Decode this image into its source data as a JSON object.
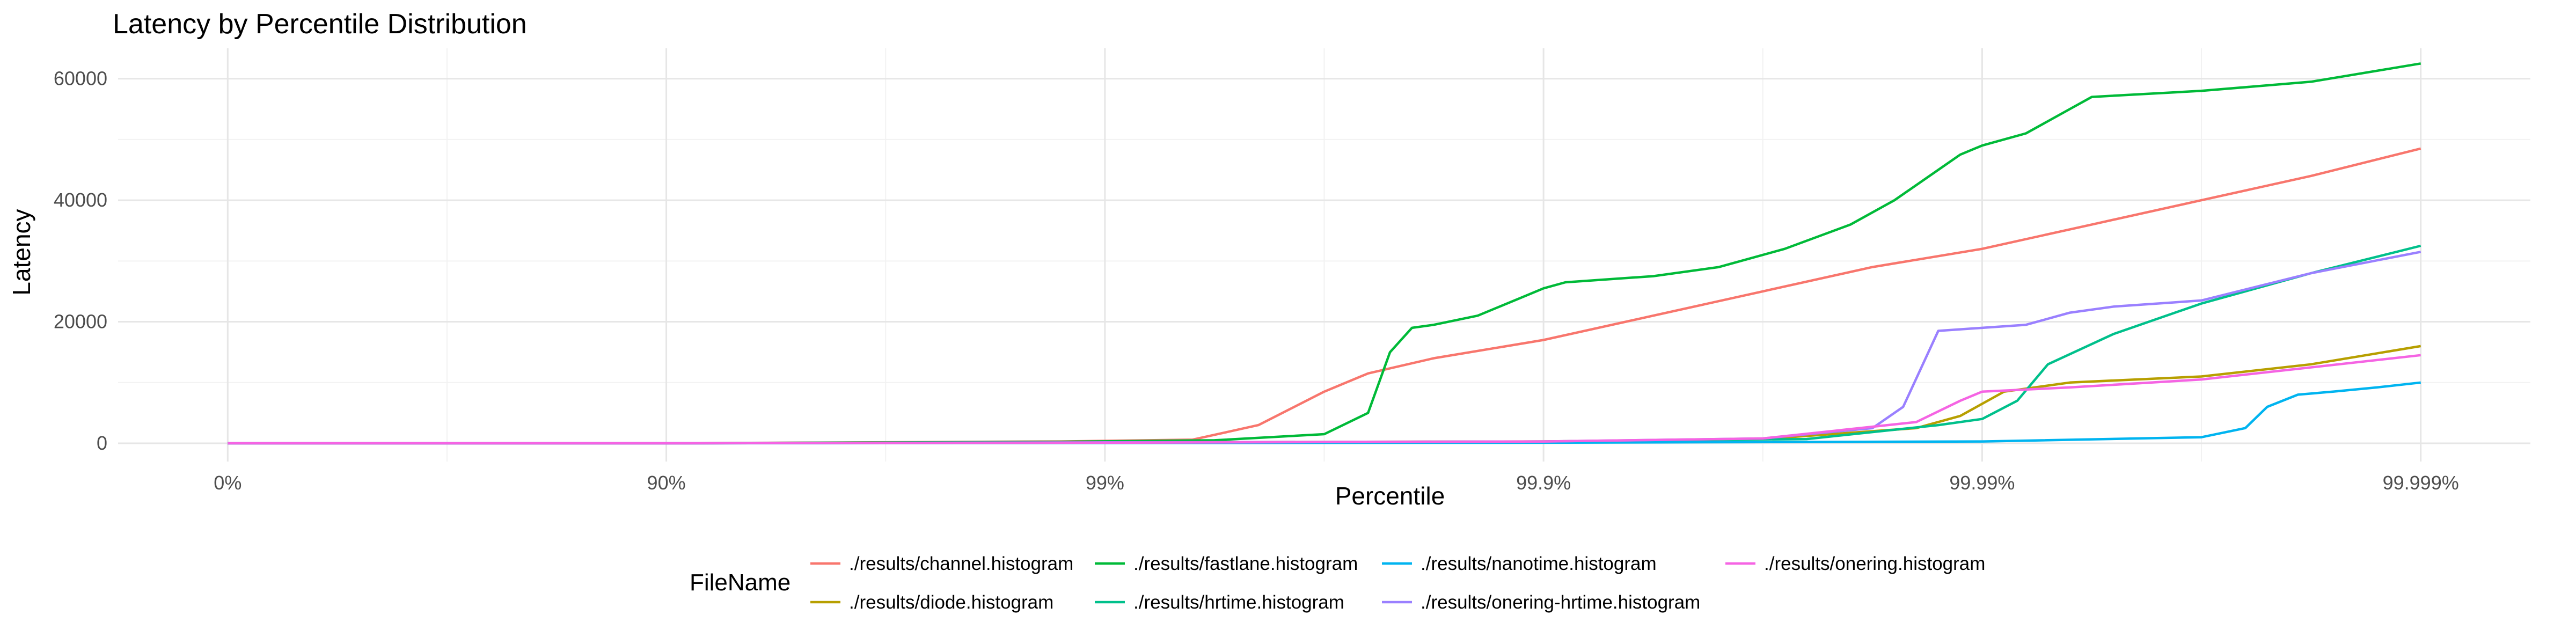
{
  "chart_data": {
    "type": "line",
    "title": "Latency by Percentile Distribution",
    "xlabel": "Percentile",
    "ylabel": "Latency",
    "x_scale": "log10(1/(1-percentile))",
    "x_ticks": [
      "0%",
      "90%",
      "99%",
      "99.9%",
      "99.99%",
      "99.999%"
    ],
    "x_tick_values": [
      0,
      1,
      2,
      3,
      4,
      5
    ],
    "xlim": [
      -0.25,
      5.25
    ],
    "y_ticks": [
      "0",
      "20000",
      "40000",
      "60000"
    ],
    "y_tick_values": [
      0,
      20000,
      40000,
      60000
    ],
    "ylim": [
      -3000,
      65000
    ],
    "grid": true,
    "legend_position": "bottom",
    "legend_title": "FileName",
    "series": [
      {
        "name": "./results/channel.histogram",
        "color": "#F8766D",
        "x": [
          0,
          1,
          1.9,
          2.2,
          2.35,
          2.5,
          2.6,
          2.75,
          3,
          3.25,
          3.5,
          3.75,
          4,
          4.25,
          4.5,
          4.75,
          5
        ],
        "y": [
          0,
          0,
          300,
          600,
          3000,
          8500,
          11500,
          14000,
          17000,
          21000,
          25000,
          29000,
          32000,
          36000,
          40000,
          44000,
          48500
        ]
      },
      {
        "name": "./results/diode.histogram",
        "color": "#B79F00",
        "x": [
          0,
          1,
          2,
          3,
          3.5,
          3.85,
          3.95,
          4.05,
          4.2,
          4.5,
          4.75,
          5
        ],
        "y": [
          0,
          0,
          150,
          300,
          700,
          2500,
          4500,
          8500,
          10000,
          11000,
          13000,
          16000
        ]
      },
      {
        "name": "./results/fastlane.histogram",
        "color": "#00BA38",
        "x": [
          0,
          1,
          1.9,
          2.25,
          2.5,
          2.6,
          2.65,
          2.7,
          2.75,
          2.85,
          2.95,
          3,
          3.05,
          3.25,
          3.4,
          3.55,
          3.7,
          3.8,
          3.9,
          3.95,
          4,
          4.1,
          4.2,
          4.25,
          4.5,
          4.75,
          5
        ],
        "y": [
          0,
          0,
          250,
          500,
          1500,
          5000,
          15000,
          19000,
          19500,
          21000,
          24000,
          25500,
          26500,
          27500,
          29000,
          32000,
          36000,
          40000,
          45000,
          47500,
          49000,
          51000,
          55000,
          57000,
          58000,
          59500,
          62500
        ]
      },
      {
        "name": "./results/hrtime.histogram",
        "color": "#00C08B",
        "x": [
          0,
          1,
          2,
          3,
          3.6,
          3.9,
          4,
          4.08,
          4.15,
          4.3,
          4.5,
          4.75,
          5
        ],
        "y": [
          0,
          0,
          100,
          300,
          700,
          3000,
          4000,
          7000,
          13000,
          18000,
          23000,
          28000,
          32500
        ]
      },
      {
        "name": "./results/nanotime.histogram",
        "color": "#00B4F0",
        "x": [
          0,
          1,
          2,
          3,
          4,
          4.5,
          4.6,
          4.65,
          4.72,
          4.8,
          4.9,
          5
        ],
        "y": [
          0,
          0,
          50,
          100,
          300,
          1000,
          2500,
          6000,
          8000,
          8500,
          9200,
          10000
        ]
      },
      {
        "name": "./results/onering-hrtime.histogram",
        "color": "#9A80FF",
        "x": [
          0,
          1,
          2,
          3,
          3.5,
          3.75,
          3.82,
          3.9,
          4,
          4.1,
          4.2,
          4.3,
          4.5,
          4.75,
          5
        ],
        "y": [
          0,
          0,
          150,
          300,
          800,
          2500,
          6000,
          18500,
          19000,
          19500,
          21500,
          22500,
          23500,
          28000,
          31500
        ]
      },
      {
        "name": "./results/onering.histogram",
        "color": "#F564E3",
        "x": [
          0,
          1,
          2,
          3,
          3.5,
          3.85,
          3.95,
          4,
          4.2,
          4.5,
          4.75,
          5
        ],
        "y": [
          0,
          0,
          100,
          300,
          800,
          3500,
          7000,
          8500,
          9200,
          10500,
          12500,
          14500
        ]
      }
    ],
    "legend_rows": [
      [
        "./results/channel.histogram",
        "./results/fastlane.histogram",
        "./results/nanotime.histogram",
        "./results/onering.histogram"
      ],
      [
        "./results/diode.histogram",
        "./results/hrtime.histogram",
        "./results/onering-hrtime.histogram"
      ]
    ]
  }
}
